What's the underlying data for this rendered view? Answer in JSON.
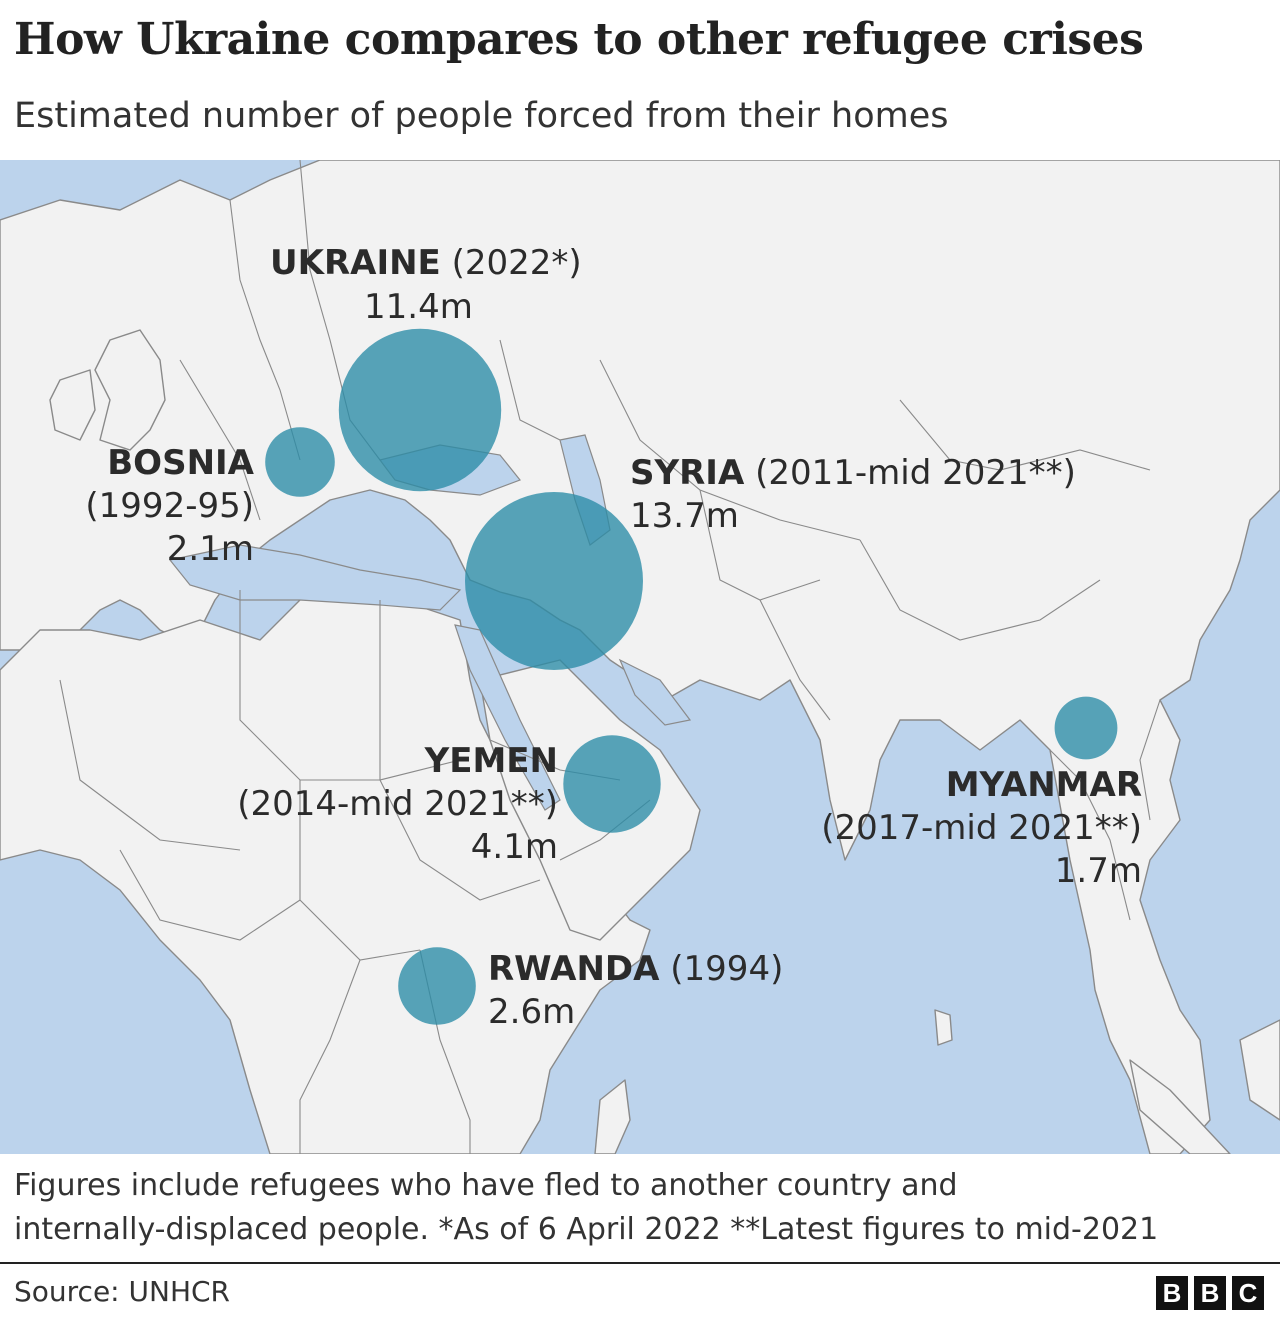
{
  "title": "How Ukraine compares to other refugee crises",
  "subtitle": "Estimated number of people forced from their homes",
  "colors": {
    "sea": "#bcd3ec",
    "land": "#f2f2f2",
    "border": "#7a7a7a",
    "bubble": "#2a8ca6"
  },
  "crises": [
    {
      "id": "ukraine",
      "name": "UKRAINE",
      "period": "(2022*)",
      "value_text": "11.4m",
      "value_millions": 11.4
    },
    {
      "id": "bosnia",
      "name": "BOSNIA",
      "period": "(1992-95)",
      "value_text": "2.1m",
      "value_millions": 2.1
    },
    {
      "id": "syria",
      "name": "SYRIA",
      "period": "(2011-mid 2021**)",
      "value_text": "13.7m",
      "value_millions": 13.7
    },
    {
      "id": "yemen",
      "name": "YEMEN",
      "period": "(2014-mid 2021**)",
      "value_text": "4.1m",
      "value_millions": 4.1
    },
    {
      "id": "myanmar",
      "name": "MYANMAR",
      "period": "(2017-mid 2021**)",
      "value_text": "1.7m",
      "value_millions": 1.7
    },
    {
      "id": "rwanda",
      "name": "RWANDA",
      "period": "(1994)",
      "value_text": "2.6m",
      "value_millions": 2.6
    }
  ],
  "footnote": {
    "line1": "Figures include refugees who have fled to another country and",
    "line2": "internally-displaced people.  *As of 6 April 2022   **Latest figures to mid-2021"
  },
  "source": "Source: UNHCR",
  "logo": [
    "B",
    "B",
    "C"
  ]
}
